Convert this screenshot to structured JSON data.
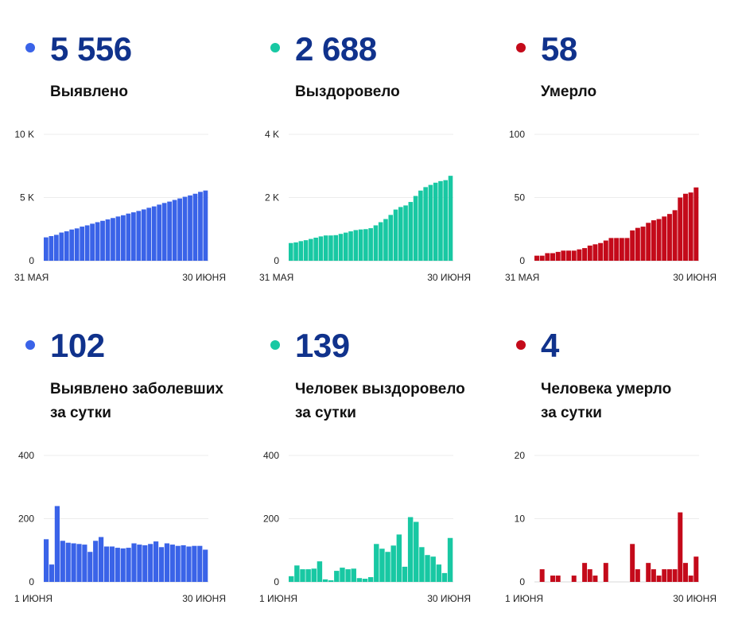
{
  "colors": {
    "blue": "#3a63e8",
    "teal": "#18c8a3",
    "red": "#c40a1a",
    "number": "#10328c"
  },
  "chart_data": [
    {
      "type": "bar",
      "headline": "5 556",
      "label_lines": [
        "Выявлено"
      ],
      "color": "#3a63e8",
      "ylim": [
        0,
        10000
      ],
      "yticks": [
        {
          "v": 0,
          "t": "0"
        },
        {
          "v": 5000,
          "t": "5 K"
        },
        {
          "v": 10000,
          "t": "10 K"
        }
      ],
      "xlabels": [
        "31 МАЯ",
        "30 ИЮНЯ"
      ],
      "values": [
        1850,
        1950,
        2050,
        2230,
        2330,
        2470,
        2560,
        2700,
        2800,
        2930,
        3050,
        3160,
        3270,
        3380,
        3500,
        3600,
        3730,
        3830,
        3940,
        4060,
        4190,
        4300,
        4440,
        4570,
        4680,
        4810,
        4930,
        5060,
        5170,
        5300,
        5450,
        5556
      ]
    },
    {
      "type": "bar",
      "headline": "2 688",
      "label_lines": [
        "Выздоровело"
      ],
      "color": "#18c8a3",
      "ylim": [
        0,
        4000
      ],
      "yticks": [
        {
          "v": 0,
          "t": "0"
        },
        {
          "v": 2000,
          "t": "2 K"
        },
        {
          "v": 4000,
          "t": "4 K"
        }
      ],
      "xlabels": [
        "31 МАЯ",
        "30 ИЮНЯ"
      ],
      "values": [
        560,
        580,
        620,
        650,
        690,
        730,
        770,
        800,
        800,
        810,
        850,
        890,
        930,
        970,
        990,
        1000,
        1030,
        1120,
        1220,
        1320,
        1450,
        1620,
        1700,
        1750,
        1860,
        2050,
        2220,
        2330,
        2400,
        2470,
        2520,
        2550,
        2688
      ]
    },
    {
      "type": "bar",
      "headline": "58",
      "label_lines": [
        "Умерло"
      ],
      "color": "#c40a1a",
      "ylim": [
        0,
        100
      ],
      "yticks": [
        {
          "v": 0,
          "t": "0"
        },
        {
          "v": 50,
          "t": "50"
        },
        {
          "v": 100,
          "t": "100"
        }
      ],
      "xlabels": [
        "31 МАЯ",
        "30 ИЮНЯ"
      ],
      "values": [
        4,
        4,
        6,
        6,
        7,
        8,
        8,
        8,
        9,
        10,
        12,
        13,
        14,
        16,
        18,
        18,
        18,
        18,
        24,
        26,
        27,
        30,
        32,
        33,
        35,
        37,
        40,
        50,
        53,
        54,
        58
      ]
    },
    {
      "type": "bar",
      "headline": "102",
      "label_lines": [
        "Выявлено заболевших",
        "за сутки"
      ],
      "color": "#3a63e8",
      "ylim": [
        0,
        400
      ],
      "yticks": [
        {
          "v": 0,
          "t": "0"
        },
        {
          "v": 200,
          "t": "200"
        },
        {
          "v": 400,
          "t": "400"
        }
      ],
      "xlabels": [
        "1 ИЮНЯ",
        "30 ИЮНЯ"
      ],
      "values": [
        135,
        55,
        240,
        130,
        124,
        122,
        120,
        118,
        95,
        130,
        142,
        112,
        112,
        108,
        106,
        108,
        122,
        118,
        116,
        120,
        128,
        110,
        122,
        118,
        114,
        116,
        112,
        114,
        114,
        102
      ]
    },
    {
      "type": "bar",
      "headline": "139",
      "label_lines": [
        "Человек выздоровело",
        "за сутки"
      ],
      "color": "#18c8a3",
      "ylim": [
        0,
        400
      ],
      "yticks": [
        {
          "v": 0,
          "t": "0"
        },
        {
          "v": 200,
          "t": "200"
        },
        {
          "v": 400,
          "t": "400"
        }
      ],
      "xlabels": [
        "1 ИЮНЯ",
        "30 ИЮНЯ"
      ],
      "values": [
        18,
        52,
        40,
        40,
        42,
        65,
        8,
        5,
        35,
        45,
        40,
        42,
        12,
        10,
        15,
        120,
        105,
        95,
        115,
        150,
        48,
        205,
        190,
        110,
        85,
        80,
        55,
        28,
        139
      ]
    },
    {
      "type": "bar",
      "headline": "4",
      "label_lines": [
        "Человека умерло",
        "за сутки"
      ],
      "color": "#c40a1a",
      "ylim": [
        0,
        20
      ],
      "yticks": [
        {
          "v": 0,
          "t": "0"
        },
        {
          "v": 10,
          "t": "10"
        },
        {
          "v": 20,
          "t": "20"
        }
      ],
      "xlabels": [
        "1 ИЮНЯ",
        "30 ИЮНЯ"
      ],
      "values": [
        0,
        2,
        0,
        1,
        1,
        0,
        0,
        1,
        0,
        3,
        2,
        1,
        0,
        3,
        0,
        0,
        0,
        0,
        6,
        2,
        0,
        3,
        2,
        1,
        2,
        2,
        2,
        11,
        3,
        1,
        4
      ]
    }
  ]
}
